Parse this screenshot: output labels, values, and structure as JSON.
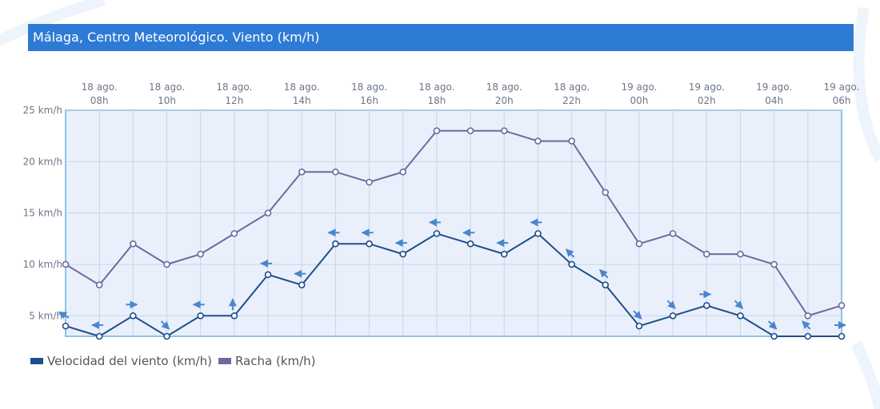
{
  "title": "Málaga, Centro Meteorológico. Viento (km/h)",
  "colors": {
    "title_bg": "#2e7bd6",
    "wind": "#1f4e8c",
    "gust": "#6e6aa0",
    "arrow": "#4a86cf",
    "plot_bg": "#e9f0fb",
    "plot_border": "#8cc4e6"
  },
  "chart_data": {
    "type": "line",
    "x_top_labels": [
      {
        "day": "18 ago.",
        "hour": "08h"
      },
      {
        "day": "18 ago.",
        "hour": "10h"
      },
      {
        "day": "18 ago.",
        "hour": "12h"
      },
      {
        "day": "18 ago.",
        "hour": "14h"
      },
      {
        "day": "18 ago.",
        "hour": "16h"
      },
      {
        "day": "18 ago.",
        "hour": "18h"
      },
      {
        "day": "18 ago.",
        "hour": "20h"
      },
      {
        "day": "18 ago.",
        "hour": "22h"
      },
      {
        "day": "19 ago.",
        "hour": "00h"
      },
      {
        "day": "19 ago.",
        "hour": "02h"
      },
      {
        "day": "19 ago.",
        "hour": "04h"
      },
      {
        "day": "19 ago.",
        "hour": "06h"
      }
    ],
    "x": [
      "18 ago. 07h",
      "18 ago. 08h",
      "18 ago. 09h",
      "18 ago. 10h",
      "18 ago. 11h",
      "18 ago. 12h",
      "18 ago. 13h",
      "18 ago. 14h",
      "18 ago. 15h",
      "18 ago. 16h",
      "18 ago. 17h",
      "18 ago. 18h",
      "18 ago. 19h",
      "18 ago. 20h",
      "18 ago. 21h",
      "18 ago. 22h",
      "18 ago. 23h",
      "19 ago. 00h",
      "19 ago. 01h",
      "19 ago. 02h",
      "19 ago. 03h",
      "19 ago. 04h",
      "19 ago. 05h",
      "19 ago. 06h"
    ],
    "y_ticks": [
      {
        "value": 5,
        "label": "5 km/h"
      },
      {
        "value": 10,
        "label": "10 km/h"
      },
      {
        "value": 15,
        "label": "15 km/h"
      },
      {
        "value": 20,
        "label": "20 km/h"
      },
      {
        "value": 25,
        "label": "25 km/h"
      }
    ],
    "ylim": [
      3,
      25
    ],
    "grid": true,
    "series": [
      {
        "name": "Velocidad del viento (km/h)",
        "values": [
          4,
          3,
          5,
          3,
          5,
          5,
          9,
          8,
          12,
          12,
          11,
          13,
          12,
          11,
          13,
          10,
          8,
          4,
          5,
          6,
          5,
          3,
          3,
          3
        ],
        "direction_deg": [
          300,
          270,
          90,
          135,
          270,
          0,
          270,
          270,
          270,
          270,
          270,
          270,
          270,
          270,
          270,
          315,
          315,
          135,
          135,
          90,
          135,
          135,
          315,
          90
        ]
      },
      {
        "name": "Racha (km/h)",
        "values": [
          10,
          8,
          12,
          10,
          11,
          13,
          15,
          19,
          19,
          18,
          19,
          23,
          23,
          23,
          22,
          22,
          17,
          12,
          13,
          11,
          11,
          10,
          5,
          6
        ]
      }
    ],
    "legend_position": "bottom-left"
  }
}
